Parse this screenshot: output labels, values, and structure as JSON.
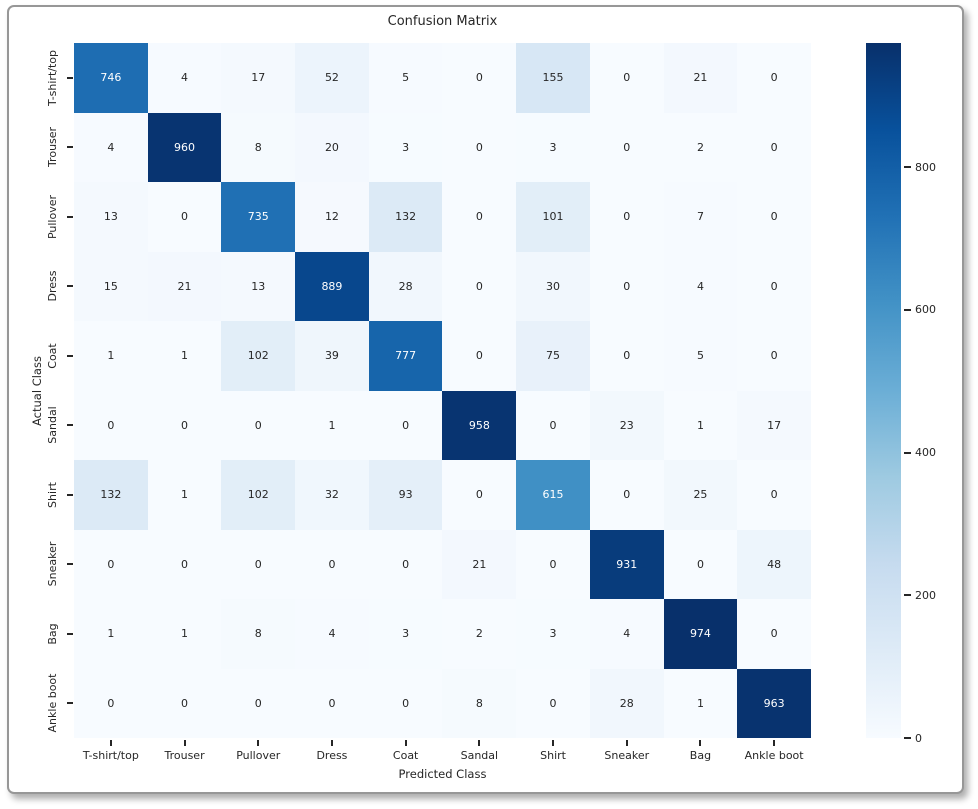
{
  "chart_data": {
    "type": "heatmap",
    "title": "Confusion Matrix",
    "xlabel": "Predicted Class",
    "ylabel": "Actual Class",
    "classes": [
      "T-shirt/top",
      "Trouser",
      "Pullover",
      "Dress",
      "Coat",
      "Sandal",
      "Shirt",
      "Sneaker",
      "Bag",
      "Ankle boot"
    ],
    "matrix": [
      [
        746,
        4,
        17,
        52,
        5,
        0,
        155,
        0,
        21,
        0
      ],
      [
        4,
        960,
        8,
        20,
        3,
        0,
        3,
        0,
        2,
        0
      ],
      [
        13,
        0,
        735,
        12,
        132,
        0,
        101,
        0,
        7,
        0
      ],
      [
        15,
        21,
        13,
        889,
        28,
        0,
        30,
        0,
        4,
        0
      ],
      [
        1,
        1,
        102,
        39,
        777,
        0,
        75,
        0,
        5,
        0
      ],
      [
        0,
        0,
        0,
        1,
        0,
        958,
        0,
        23,
        1,
        17
      ],
      [
        132,
        1,
        102,
        32,
        93,
        0,
        615,
        0,
        25,
        0
      ],
      [
        0,
        0,
        0,
        0,
        0,
        21,
        0,
        931,
        0,
        48
      ],
      [
        1,
        1,
        8,
        4,
        3,
        2,
        3,
        4,
        974,
        0
      ],
      [
        0,
        0,
        0,
        0,
        0,
        8,
        0,
        28,
        1,
        963
      ]
    ],
    "vmin": 0,
    "vmax": 974,
    "colorbar_ticks": [
      0,
      200,
      400,
      600,
      800
    ],
    "colormap_name": "Blues",
    "colormap_stops": [
      "#f7fbff",
      "#deebf7",
      "#c6dbef",
      "#9ecae1",
      "#6baed6",
      "#4292c6",
      "#2171b5",
      "#08519c",
      "#08306b"
    ],
    "annotation_dark_color": "#262626",
    "annotation_light_color": "#ffffff",
    "legend_position": "right-colorbar",
    "grid": false
  }
}
